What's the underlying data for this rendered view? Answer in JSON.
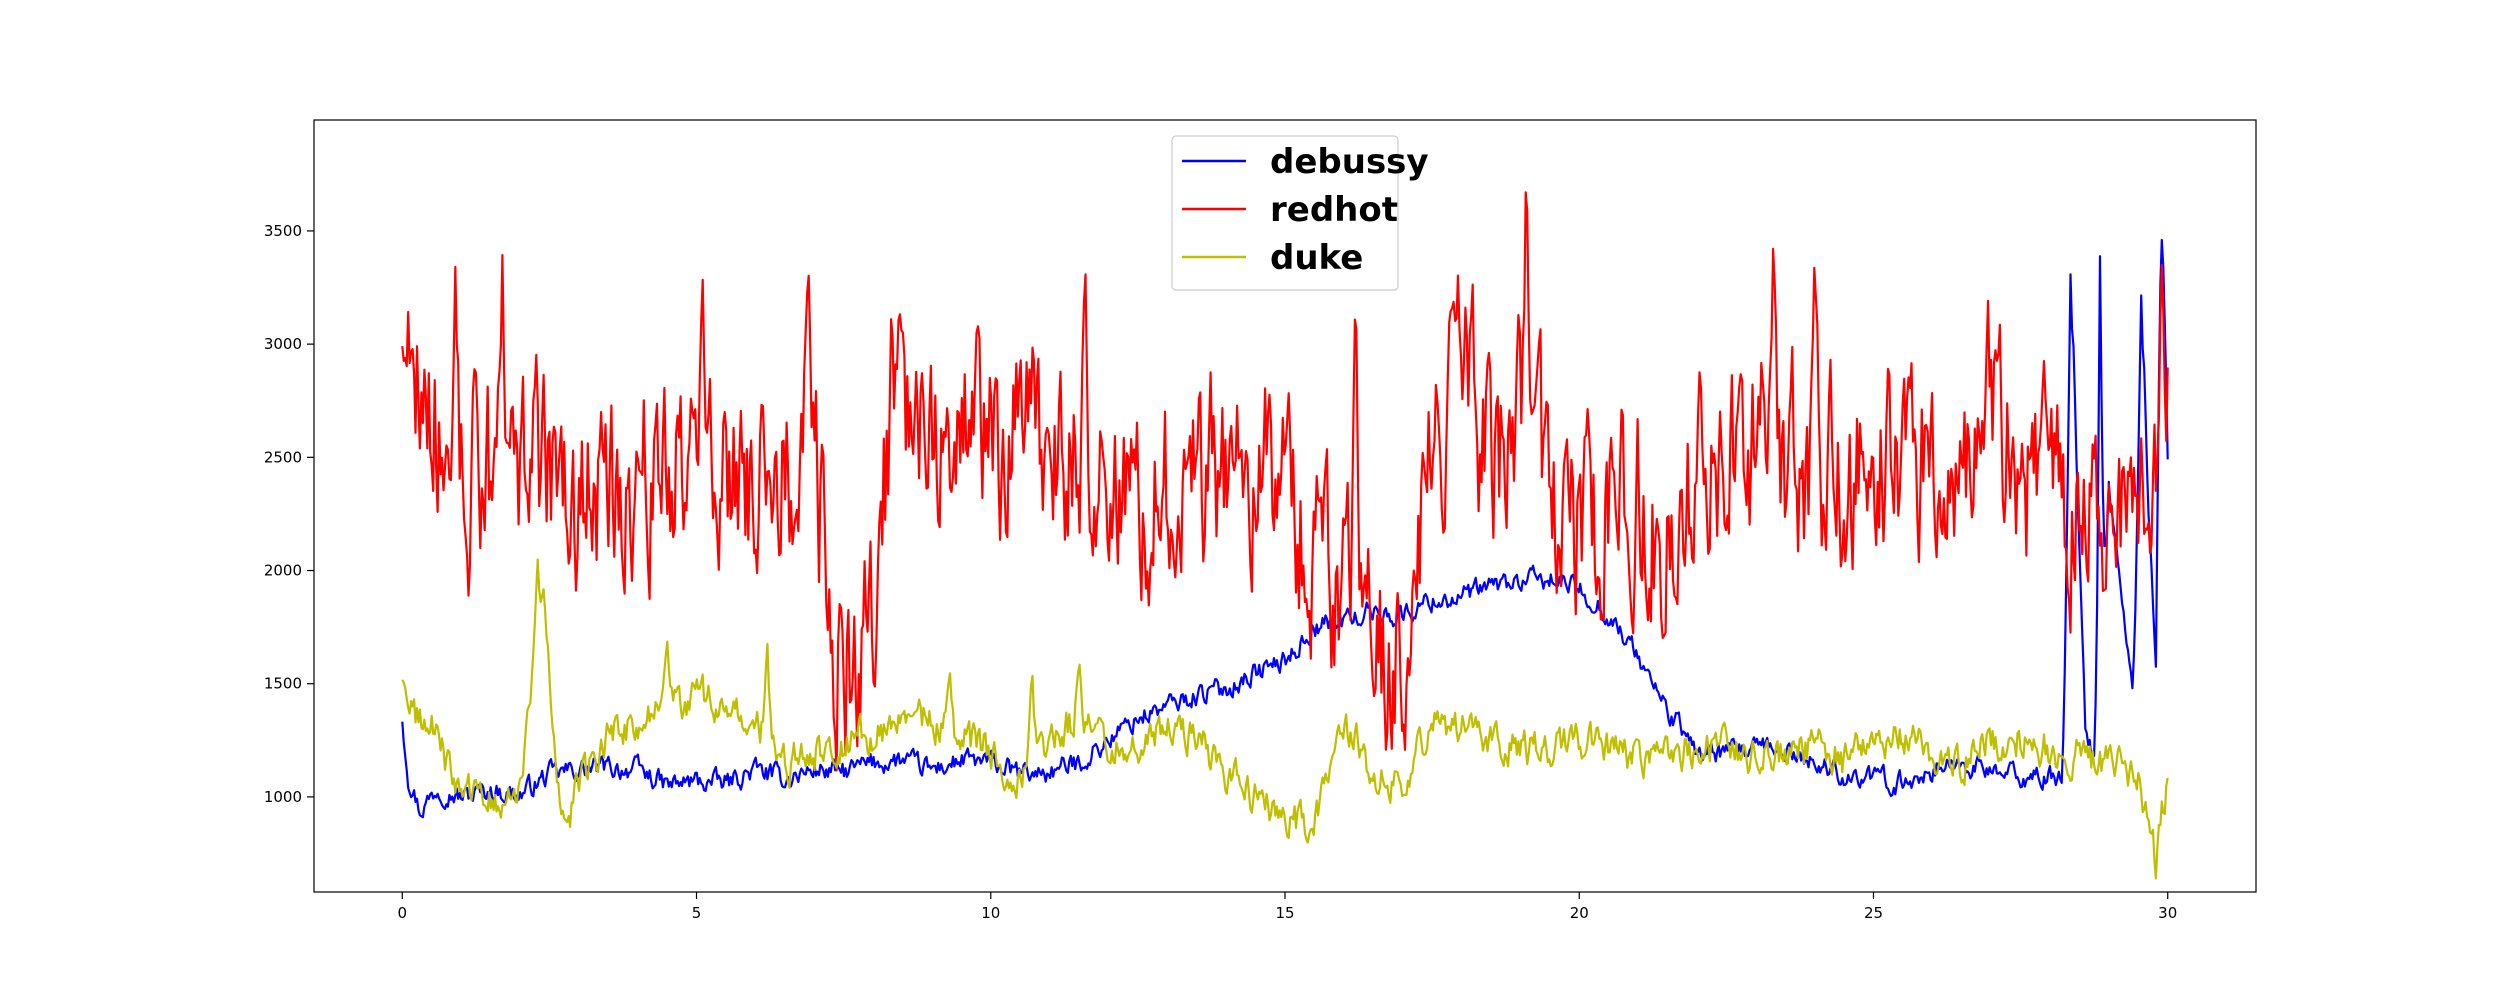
{
  "chart_data": {
    "type": "line",
    "title": "",
    "xlabel": "",
    "ylabel": "",
    "xlim": [
      -1.5,
      31.5
    ],
    "ylim": [
      580,
      3990
    ],
    "x_ticks": [
      0,
      5,
      10,
      15,
      20,
      25,
      30
    ],
    "y_ticks": [
      1000,
      1500,
      2000,
      2500,
      3000,
      3500
    ],
    "grid": false,
    "legend_position": "upper-center",
    "x_range": [
      0,
      30
    ],
    "series": [
      {
        "name": "debussy",
        "color": "#0000ff",
        "anchors": [
          [
            0,
            1350
          ],
          [
            0.1,
            1100
          ],
          [
            0.3,
            940
          ],
          [
            0.6,
            1040
          ],
          [
            1,
            1000
          ],
          [
            1.5,
            1030
          ],
          [
            2,
            1010
          ],
          [
            2.5,
            1100
          ],
          [
            3,
            1120
          ],
          [
            3.5,
            1130
          ],
          [
            4,
            1120
          ],
          [
            4.5,
            1050
          ],
          [
            5,
            1070
          ],
          [
            5.5,
            1060
          ],
          [
            6,
            1120
          ],
          [
            6.5,
            1080
          ],
          [
            7,
            1120
          ],
          [
            7.5,
            1110
          ],
          [
            8,
            1150
          ],
          [
            8.5,
            1160
          ],
          [
            9,
            1120
          ],
          [
            9.5,
            1160
          ],
          [
            10,
            1150
          ],
          [
            10.5,
            1100
          ],
          [
            11,
            1110
          ],
          [
            11.5,
            1150
          ],
          [
            12,
            1250
          ],
          [
            12.5,
            1350
          ],
          [
            13,
            1400
          ],
          [
            13.5,
            1450
          ],
          [
            14,
            1480
          ],
          [
            14.5,
            1550
          ],
          [
            15,
            1600
          ],
          [
            15.5,
            1750
          ],
          [
            16,
            1780
          ],
          [
            16.5,
            1820
          ],
          [
            17,
            1800
          ],
          [
            17.5,
            1870
          ],
          [
            18,
            1880
          ],
          [
            18.5,
            1930
          ],
          [
            19,
            1950
          ],
          [
            19.5,
            1960
          ],
          [
            20,
            1920
          ],
          [
            20.5,
            1800
          ],
          [
            21,
            1620
          ],
          [
            21.5,
            1380
          ],
          [
            22,
            1200
          ],
          [
            22.5,
            1190
          ],
          [
            23,
            1210
          ],
          [
            23.5,
            1200
          ],
          [
            24,
            1150
          ],
          [
            24.5,
            1100
          ],
          [
            25,
            1080
          ],
          [
            25.5,
            1060
          ],
          [
            26,
            1120
          ],
          [
            26.5,
            1150
          ],
          [
            27,
            1110
          ],
          [
            27.5,
            1090
          ],
          [
            28,
            1080
          ],
          [
            28.2,
            1100
          ],
          [
            28.4,
            2800
          ],
          [
            28.6,
            1300
          ],
          [
            28.8,
            1100
          ],
          [
            29,
            2400
          ],
          [
            29.2,
            1900
          ],
          [
            29.4,
            1500
          ],
          [
            29.6,
            2700
          ],
          [
            29.8,
            1550
          ],
          [
            29.9,
            3400
          ],
          [
            30,
            2450
          ]
        ],
        "spikes": [
          [
            28.35,
            3330
          ],
          [
            28.85,
            3420
          ],
          [
            29.55,
            3220
          ],
          [
            29.9,
            3460
          ]
        ],
        "noise": 55
      },
      {
        "name": "redhot",
        "color": "#ff0000",
        "anchors": [
          [
            0,
            3100
          ],
          [
            1,
            2400
          ],
          [
            2,
            2500
          ],
          [
            3,
            2300
          ],
          [
            4,
            2400
          ],
          [
            5,
            2450
          ],
          [
            6,
            2400
          ],
          [
            7,
            2500
          ],
          [
            7.3,
            1700
          ],
          [
            7.8,
            1500
          ],
          [
            8.1,
            2000
          ],
          [
            8.3,
            2800
          ],
          [
            9,
            2700
          ],
          [
            10,
            2600
          ],
          [
            11,
            2500
          ],
          [
            12,
            2350
          ],
          [
            13,
            2400
          ],
          [
            14,
            2500
          ],
          [
            15,
            2350
          ],
          [
            15.5,
            2100
          ],
          [
            16,
            1900
          ],
          [
            16.5,
            1700
          ],
          [
            17,
            1600
          ],
          [
            17.5,
            2550
          ],
          [
            18,
            2800
          ],
          [
            18.5,
            2500
          ],
          [
            19,
            2600
          ],
          [
            19.5,
            2300
          ],
          [
            20,
            2200
          ],
          [
            21,
            2300
          ],
          [
            21.5,
            2100
          ],
          [
            22,
            2400
          ],
          [
            23,
            2550
          ],
          [
            24,
            2400
          ],
          [
            25,
            2450
          ],
          [
            26,
            2500
          ],
          [
            27,
            2700
          ],
          [
            27.5,
            2400
          ],
          [
            28,
            2350
          ],
          [
            28.5,
            2300
          ],
          [
            29,
            2200
          ],
          [
            29.5,
            2300
          ],
          [
            30,
            2650
          ]
        ],
        "spikes": [
          [
            0.9,
            3350
          ],
          [
            1.7,
            3420
          ],
          [
            5.1,
            3360
          ],
          [
            6.9,
            3380
          ],
          [
            11.6,
            3480
          ],
          [
            16.2,
            3380
          ],
          [
            19.1,
            3840
          ],
          [
            23.3,
            3530
          ],
          [
            24,
            3420
          ],
          [
            29.9,
            3350
          ]
        ],
        "noise": 480
      },
      {
        "name": "duke",
        "color": "#bfbf00",
        "anchors": [
          [
            0,
            1530
          ],
          [
            0.1,
            1380
          ],
          [
            0.5,
            1300
          ],
          [
            1,
            1020
          ],
          [
            1.5,
            980
          ],
          [
            2,
            1040
          ],
          [
            2.4,
            1850
          ],
          [
            2.7,
            850
          ],
          [
            3,
            1030
          ],
          [
            3.5,
            1290
          ],
          [
            4,
            1320
          ],
          [
            4.5,
            1390
          ],
          [
            5,
            1450
          ],
          [
            5.5,
            1380
          ],
          [
            6,
            1300
          ],
          [
            6.5,
            1150
          ],
          [
            7,
            1200
          ],
          [
            7.5,
            1250
          ],
          [
            8,
            1280
          ],
          [
            8.5,
            1320
          ],
          [
            9,
            1340
          ],
          [
            9.5,
            1260
          ],
          [
            10,
            1200
          ],
          [
            10.5,
            1100
          ],
          [
            11,
            1250
          ],
          [
            11.5,
            1350
          ],
          [
            12,
            1250
          ],
          [
            12.5,
            1200
          ],
          [
            13,
            1300
          ],
          [
            13.5,
            1260
          ],
          [
            14,
            1100
          ],
          [
            14.5,
            1000
          ],
          [
            15,
            900
          ],
          [
            15.5,
            860
          ],
          [
            16,
            1350
          ],
          [
            16.5,
            1100
          ],
          [
            17,
            1050
          ],
          [
            17.5,
            1350
          ],
          [
            18,
            1300
          ],
          [
            18.5,
            1250
          ],
          [
            19,
            1200
          ],
          [
            19.5,
            1220
          ],
          [
            20,
            1260
          ],
          [
            20.5,
            1200
          ],
          [
            21,
            1180
          ],
          [
            21.5,
            1200
          ],
          [
            22,
            1220
          ],
          [
            22.5,
            1210
          ],
          [
            23,
            1180
          ],
          [
            23.5,
            1200
          ],
          [
            24,
            1220
          ],
          [
            24.5,
            1150
          ],
          [
            25,
            1260
          ],
          [
            25.5,
            1250
          ],
          [
            26,
            1180
          ],
          [
            26.5,
            1160
          ],
          [
            27,
            1250
          ],
          [
            27.5,
            1260
          ],
          [
            28,
            1200
          ],
          [
            28.5,
            1180
          ],
          [
            29,
            1150
          ],
          [
            29.5,
            1100
          ],
          [
            29.8,
            700
          ],
          [
            30,
            1100
          ]
        ],
        "spikes": [
          [
            2.3,
            2060
          ],
          [
            4.5,
            1700
          ],
          [
            6.2,
            1720
          ],
          [
            9.3,
            1580
          ],
          [
            10.7,
            1600
          ],
          [
            11.5,
            1620
          ]
        ],
        "noise": 95
      }
    ]
  }
}
